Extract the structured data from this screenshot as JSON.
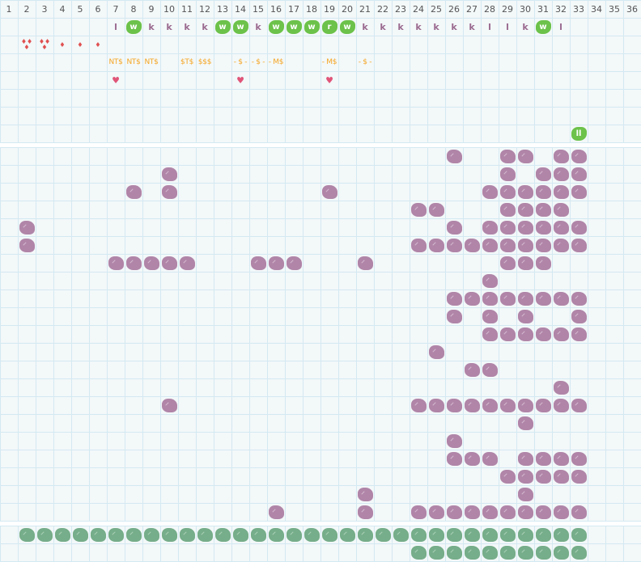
{
  "colors": {
    "grid_line": "#d4e9f2",
    "background": "#f3f8f9",
    "purple_tile": "#b085a8",
    "green_tile": "#6cc24a",
    "dark_green_tile": "#76ad8a",
    "letter": "#9a6a8f",
    "money": "#f5a623",
    "drop": "#e05050",
    "heart": "#e05578"
  },
  "column_numbers": [
    "1",
    "2",
    "3",
    "4",
    "5",
    "6",
    "7",
    "8",
    "9",
    "10",
    "11",
    "12",
    "13",
    "14",
    "15",
    "16",
    "17",
    "18",
    "19",
    "20",
    "21",
    "22",
    "23",
    "24",
    "25",
    "26",
    "27",
    "28",
    "29",
    "30",
    "31",
    "32",
    "33",
    "34",
    "35",
    "36"
  ],
  "letter_row": [
    {
      "col": 7,
      "text": "l",
      "green": false
    },
    {
      "col": 8,
      "text": "w",
      "green": true
    },
    {
      "col": 9,
      "text": "k",
      "green": false
    },
    {
      "col": 10,
      "text": "k",
      "green": false
    },
    {
      "col": 11,
      "text": "k",
      "green": false
    },
    {
      "col": 12,
      "text": "k",
      "green": false
    },
    {
      "col": 13,
      "text": "w",
      "green": true
    },
    {
      "col": 14,
      "text": "w",
      "green": true
    },
    {
      "col": 15,
      "text": "k",
      "green": false
    },
    {
      "col": 16,
      "text": "w",
      "green": true
    },
    {
      "col": 17,
      "text": "w",
      "green": true
    },
    {
      "col": 18,
      "text": "w",
      "green": true
    },
    {
      "col": 19,
      "text": "r",
      "green": true
    },
    {
      "col": 20,
      "text": "w",
      "green": true
    },
    {
      "col": 21,
      "text": "k",
      "green": false
    },
    {
      "col": 22,
      "text": "k",
      "green": false
    },
    {
      "col": 23,
      "text": "k",
      "green": false
    },
    {
      "col": 24,
      "text": "k",
      "green": false
    },
    {
      "col": 25,
      "text": "k",
      "green": false
    },
    {
      "col": 26,
      "text": "k",
      "green": false
    },
    {
      "col": 27,
      "text": "k",
      "green": false
    },
    {
      "col": 28,
      "text": "l",
      "green": false
    },
    {
      "col": 29,
      "text": "l",
      "green": false
    },
    {
      "col": 30,
      "text": "k",
      "green": false
    },
    {
      "col": 31,
      "text": "w",
      "green": true
    },
    {
      "col": 32,
      "text": "l",
      "green": false
    }
  ],
  "drop_row": [
    {
      "col": 2,
      "count": 3
    },
    {
      "col": 3,
      "count": 3
    },
    {
      "col": 4,
      "count": 1
    },
    {
      "col": 5,
      "count": 1
    },
    {
      "col": 6,
      "count": 1
    }
  ],
  "money_row": [
    {
      "col": 7,
      "text": "NT$"
    },
    {
      "col": 8,
      "text": "NT$"
    },
    {
      "col": 9,
      "text": "NT$"
    },
    {
      "col": 11,
      "text": "$T$"
    },
    {
      "col": 12,
      "text": "$$$"
    },
    {
      "col": 14,
      "text": "- $ -"
    },
    {
      "col": 15,
      "text": "- $ -"
    },
    {
      "col": 16,
      "text": "- M$"
    },
    {
      "col": 19,
      "text": "- M$"
    },
    {
      "col": 21,
      "text": "- $ -"
    }
  ],
  "heart_row": [
    {
      "col": 7
    },
    {
      "col": 14
    },
    {
      "col": 19
    }
  ],
  "top_badge": {
    "row": 7,
    "col": 33,
    "text": "ll"
  },
  "main_grid": [
    ".........................#..##.##...",
    ".........#..................#.###...",
    ".......#.#........#........######...",
    ".......................##...####....",
    ".#.......................#.######...",
    ".#.....................##########...",
    "......#####...###...#.......###.....",
    "...........................#........",
    ".........................########...",
    ".........................#.#.#..#...",
    "...........................######...",
    "........................#...........",
    "..........................##........",
    "...............................#....",
    ".........#.............##########...",
    ".............................#......",
    ".........................#..........",
    ".........................###.####...",
    "............................#####...",
    "....................#........#......",
    "...............#....#..##########..."
  ],
  "bottom_grid": [
    ".################################...",
    ".......................##########..."
  ]
}
